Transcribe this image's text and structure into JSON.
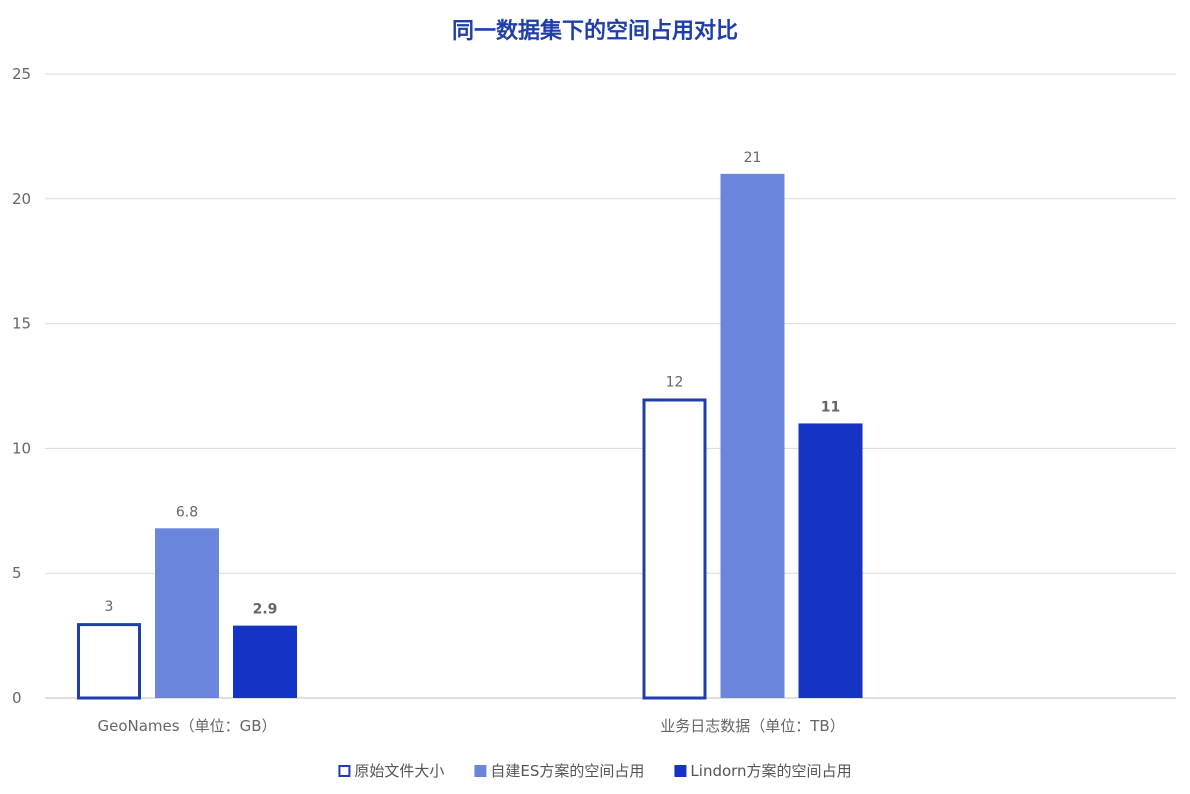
{
  "chart_data": {
    "type": "bar",
    "title": "同一数据集下的空间占用对比",
    "categories": [
      "GeoNames（单位：GB）",
      "业务日志数据（单位：TB）"
    ],
    "series": [
      {
        "name": "原始文件大小",
        "values": [
          3,
          12
        ],
        "color": "#1f3eaa",
        "style": "outline"
      },
      {
        "name": "自建ES方案的空间占用",
        "values": [
          6.8,
          21
        ],
        "color": "#6b85dd",
        "style": "fill"
      },
      {
        "name": "Lindorn方案的空间占用",
        "values": [
          2.9,
          11
        ],
        "color": "#1534c5",
        "style": "fill"
      }
    ],
    "data_labels": [
      [
        "3",
        "12"
      ],
      [
        "6.8",
        "21"
      ],
      [
        "2.9",
        "11"
      ]
    ],
    "bold_series_labels": [
      2
    ],
    "xlabel": "",
    "ylabel": "",
    "ylim": [
      0,
      25
    ],
    "yticks": [
      0,
      5,
      10,
      15,
      20,
      25
    ],
    "grid": true,
    "legend_position": "bottom"
  },
  "colors": {
    "title": "#1f3eaa",
    "grid": "#d9d9d9",
    "axis": "#bfbfbf"
  }
}
